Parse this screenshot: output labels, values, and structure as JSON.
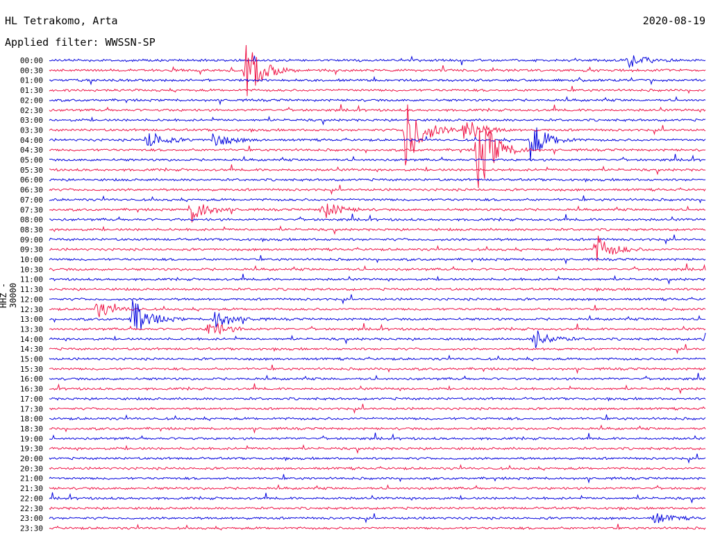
{
  "header": {
    "station": "HL Tetrakomo, Arta",
    "date": "2020-08-19",
    "filter": "Applied filter: WWSSN-SP"
  },
  "y_axis_label": "HHZ - 30000",
  "colors": {
    "trace_a": "#0000dd",
    "trace_b": "#ee1144"
  },
  "chart_data": {
    "type": "line",
    "title": "HL Tetrakomo, Arta",
    "subtitle": "Applied filter: WWSSN-SP",
    "ylabel": "HHZ - 30000",
    "row_labels": [
      "00:00",
      "00:30",
      "01:00",
      "01:30",
      "02:00",
      "02:30",
      "03:00",
      "03:30",
      "04:00",
      "04:30",
      "05:00",
      "05:30",
      "06:00",
      "06:30",
      "07:00",
      "07:30",
      "08:00",
      "08:30",
      "09:00",
      "09:30",
      "10:00",
      "10:30",
      "11:00",
      "11:30",
      "12:00",
      "12:30",
      "13:00",
      "13:30",
      "14:00",
      "14:30",
      "15:00",
      "15:30",
      "16:00",
      "16:30",
      "17:00",
      "17:30",
      "18:00",
      "18:30",
      "19:00",
      "19:30",
      "20:00",
      "20:30",
      "21:00",
      "21:30",
      "22:00",
      "22:30",
      "23:00",
      "23:30"
    ],
    "row_minutes": 30,
    "color_cycle": [
      "#0000dd",
      "#ee1144"
    ],
    "events": [
      {
        "row": "00:30",
        "minute": 9.0,
        "amplitude": 48
      },
      {
        "row": "00:00",
        "minute": 26.5,
        "amplitude": 10
      },
      {
        "row": "03:30",
        "minute": 16.3,
        "amplitude": 60
      },
      {
        "row": "03:30",
        "minute": 19.0,
        "amplitude": 22
      },
      {
        "row": "04:30",
        "minute": 19.6,
        "amplitude": 65
      },
      {
        "row": "04:00",
        "minute": 22.0,
        "amplitude": 30
      },
      {
        "row": "04:00",
        "minute": 4.5,
        "amplitude": 14
      },
      {
        "row": "04:00",
        "minute": 7.5,
        "amplitude": 12
      },
      {
        "row": "07:30",
        "minute": 6.5,
        "amplitude": 20
      },
      {
        "row": "07:30",
        "minute": 12.5,
        "amplitude": 14
      },
      {
        "row": "09:30",
        "minute": 25.0,
        "amplitude": 22
      },
      {
        "row": "12:30",
        "minute": 2.2,
        "amplitude": 12
      },
      {
        "row": "13:00",
        "minute": 3.8,
        "amplitude": 30
      },
      {
        "row": "13:00",
        "minute": 7.6,
        "amplitude": 15
      },
      {
        "row": "13:30",
        "minute": 7.3,
        "amplitude": 14
      },
      {
        "row": "14:00",
        "minute": 22.2,
        "amplitude": 14
      },
      {
        "row": "14:00",
        "minute": 30.0,
        "amplitude": 8
      },
      {
        "row": "23:00",
        "minute": 27.7,
        "amplitude": 8
      }
    ]
  }
}
